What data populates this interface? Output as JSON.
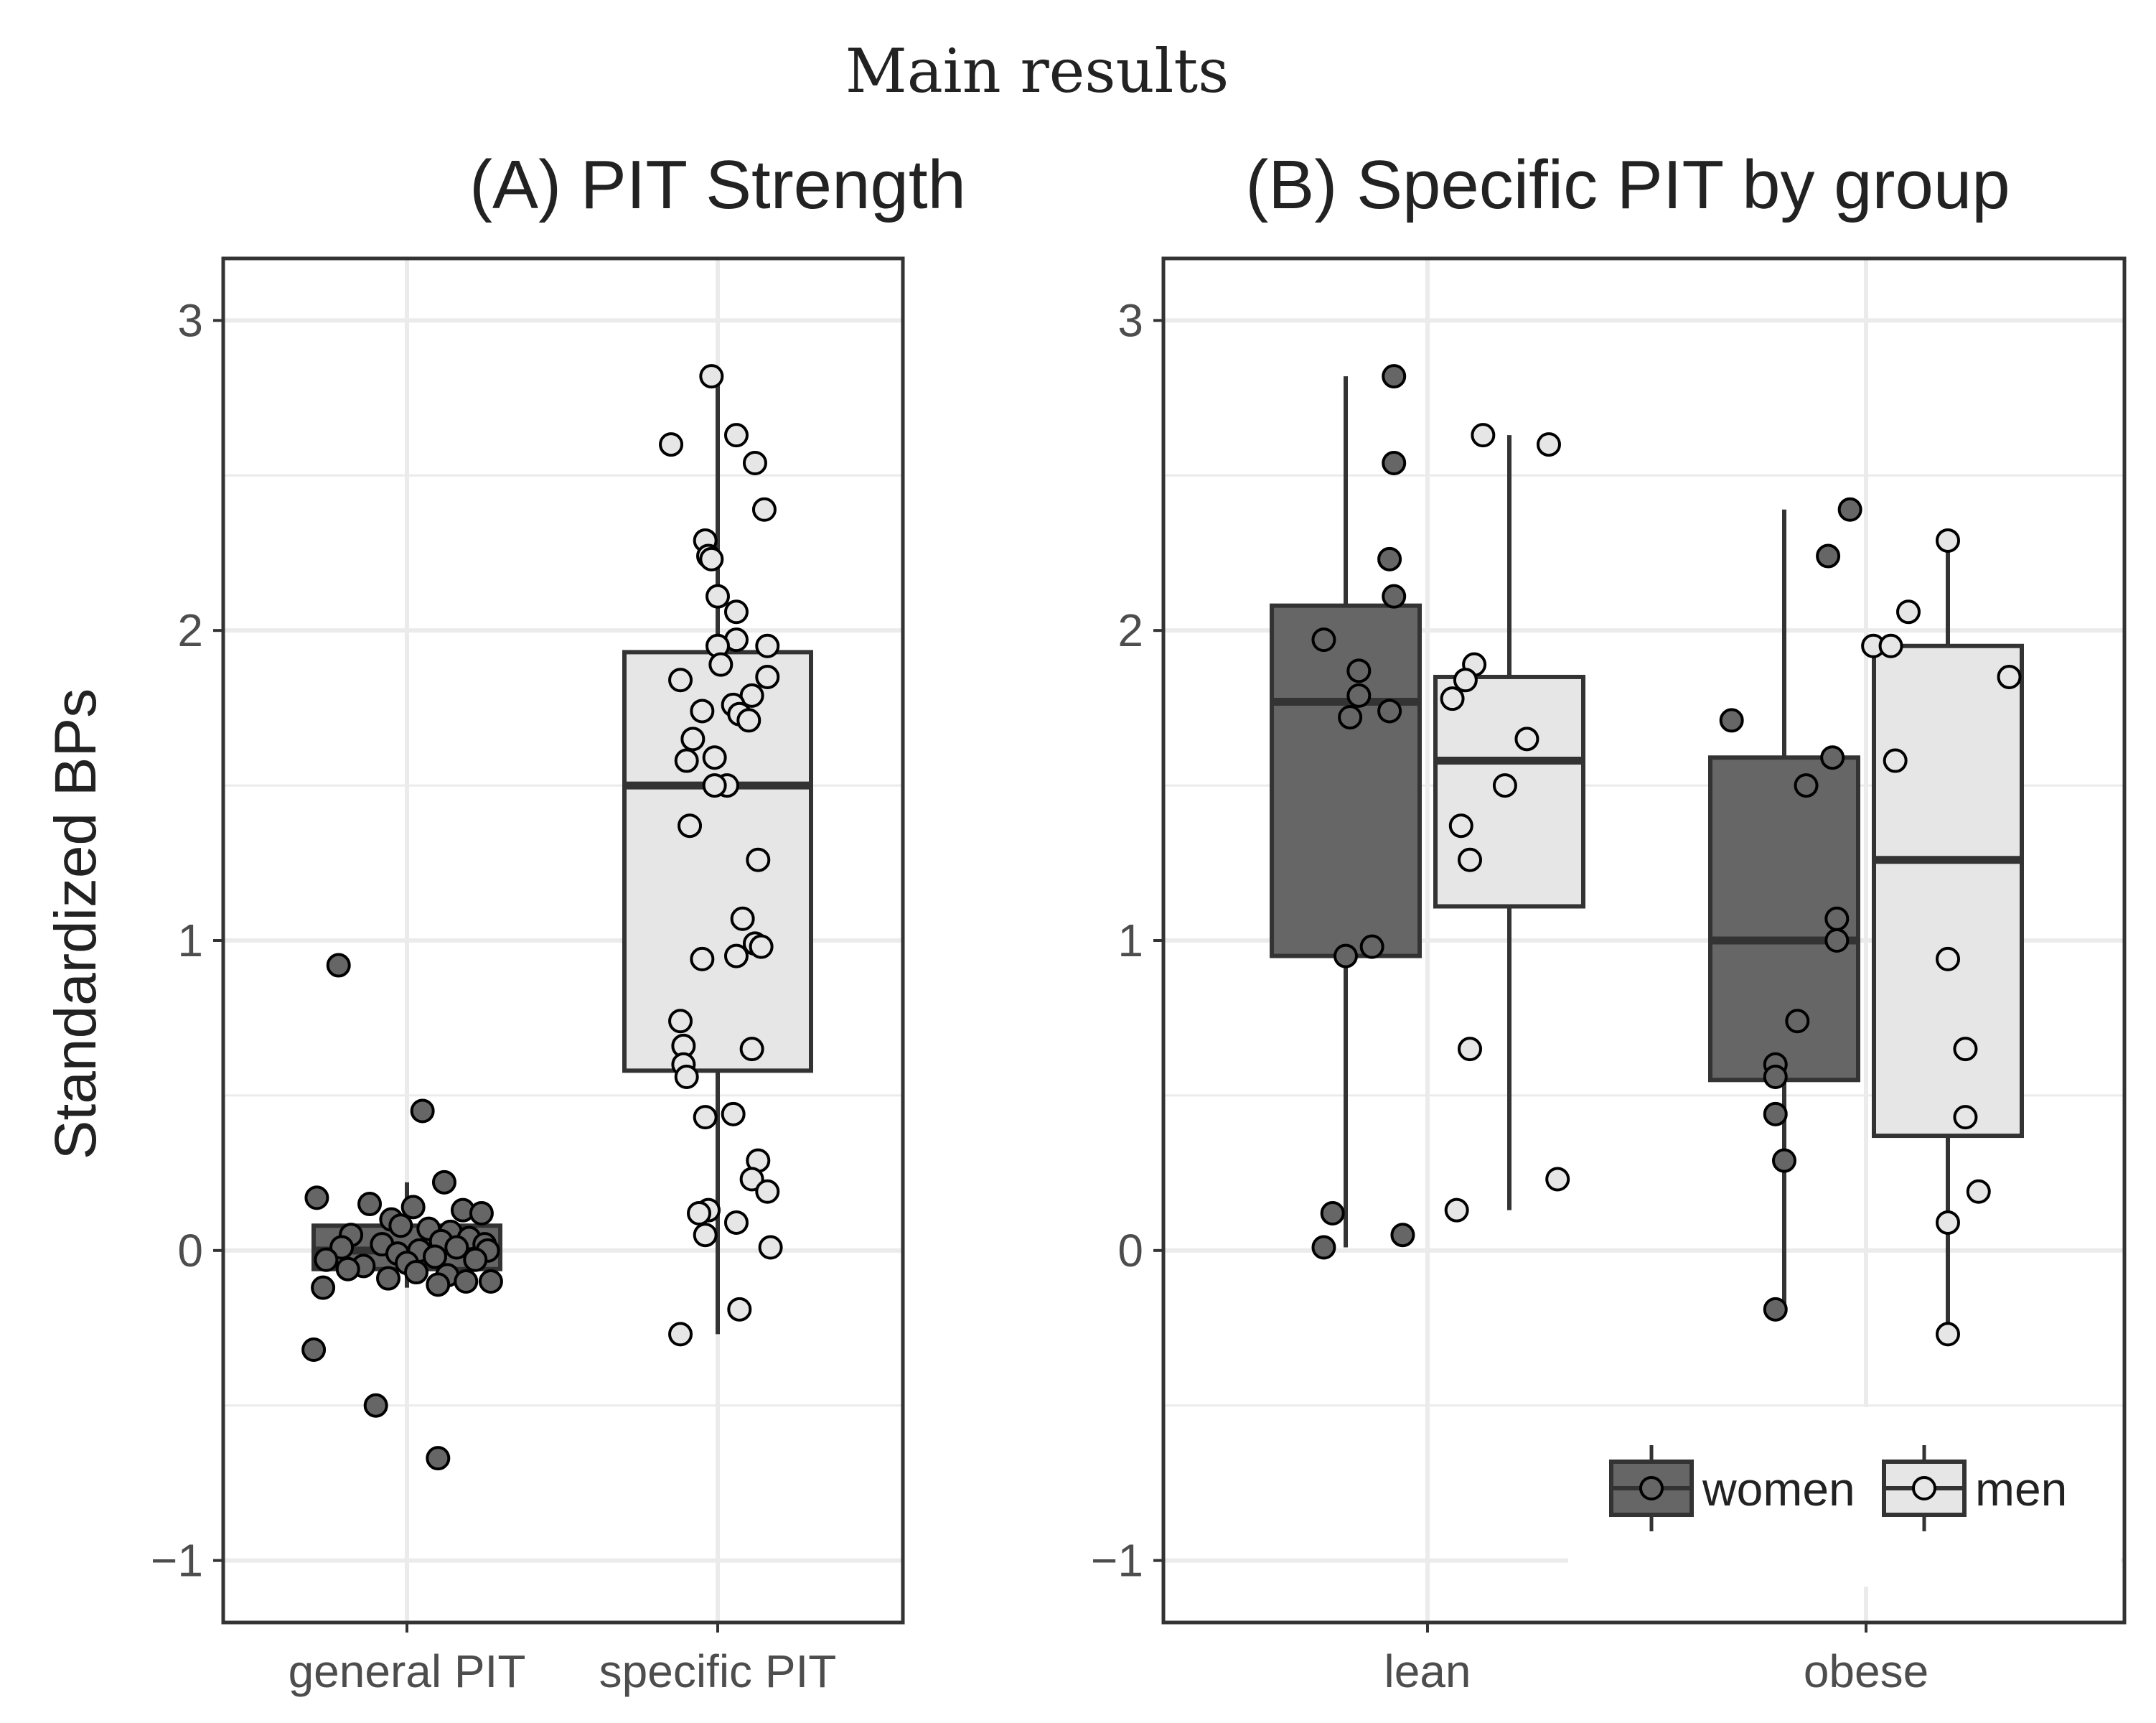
{
  "figure": {
    "title": "Main results",
    "ylabel": "Standardized BPs"
  },
  "colors": {
    "women": "#666666",
    "men": "#e6e6e6",
    "line": "#333333",
    "grid": "#ebebeb"
  },
  "chart_data": [
    {
      "type": "box",
      "title": "(A) PIT Strength",
      "ylabel": "Standardized BPs",
      "ylim": [
        -1.2,
        3.2
      ],
      "yticks": [
        -1,
        0,
        1,
        2,
        3
      ],
      "ytick_labels": [
        "−1",
        "0",
        "1",
        "2",
        "3"
      ],
      "categories": [
        "general PIT",
        "specific PIT"
      ],
      "boxes": [
        {
          "category": "general PIT",
          "fill": "women",
          "q1": -0.06,
          "median": 0.0,
          "q3": 0.08,
          "whisker_low": -0.12,
          "whisker_high": 0.22
        },
        {
          "category": "specific PIT",
          "fill": "men",
          "q1": 0.58,
          "median": 1.5,
          "q3": 1.93,
          "whisker_low": -0.27,
          "whisker_high": 2.82
        }
      ],
      "points": [
        {
          "category": "general PIT",
          "fill": "women",
          "y": [
            0.92,
            0.45,
            0.22,
            0.17,
            0.15,
            0.14,
            0.13,
            0.12,
            0.1,
            0.08,
            0.07,
            0.06,
            0.05,
            0.04,
            0.03,
            0.02,
            0.02,
            0.01,
            0.01,
            0.0,
            0.0,
            -0.01,
            -0.02,
            -0.03,
            -0.03,
            -0.04,
            -0.05,
            -0.06,
            -0.07,
            -0.08,
            -0.09,
            -0.1,
            -0.1,
            -0.11,
            -0.12,
            -0.32,
            -0.5,
            -0.67
          ],
          "jitter": [
            -0.22,
            0.05,
            0.12,
            -0.29,
            -0.12,
            0.02,
            0.18,
            0.24,
            -0.05,
            -0.02,
            0.07,
            0.14,
            -0.18,
            0.2,
            0.11,
            -0.08,
            0.25,
            -0.21,
            0.16,
            0.26,
            0.04,
            -0.03,
            0.09,
            -0.26,
            0.22,
            0.0,
            -0.14,
            -0.19,
            0.03,
            0.13,
            -0.06,
            0.19,
            0.27,
            0.1,
            -0.27,
            -0.3,
            -0.1,
            0.1
          ]
        },
        {
          "category": "specific PIT",
          "fill": "men",
          "y": [
            2.82,
            2.63,
            2.6,
            2.54,
            2.39,
            2.29,
            2.24,
            2.23,
            2.11,
            2.06,
            1.97,
            1.95,
            1.95,
            1.89,
            1.85,
            1.84,
            1.79,
            1.76,
            1.74,
            1.73,
            1.71,
            1.65,
            1.59,
            1.58,
            1.5,
            1.5,
            1.37,
            1.26,
            1.07,
            0.99,
            0.98,
            0.95,
            0.94,
            0.74,
            0.66,
            0.65,
            0.6,
            0.56,
            0.44,
            0.43,
            0.29,
            0.23,
            0.19,
            0.13,
            0.12,
            0.09,
            0.05,
            0.01,
            -0.19,
            -0.27
          ],
          "jitter": [
            -0.02,
            0.06,
            -0.15,
            0.12,
            0.15,
            -0.04,
            -0.03,
            -0.02,
            0.0,
            0.06,
            0.06,
            0.0,
            0.16,
            0.01,
            0.16,
            -0.12,
            0.11,
            0.05,
            -0.05,
            0.07,
            0.1,
            -0.08,
            -0.01,
            -0.1,
            0.03,
            -0.01,
            -0.09,
            0.13,
            0.08,
            0.12,
            0.14,
            0.06,
            -0.05,
            -0.12,
            -0.11,
            0.11,
            -0.11,
            -0.1,
            0.05,
            -0.04,
            0.13,
            0.11,
            0.16,
            -0.03,
            -0.06,
            0.06,
            -0.04,
            0.17,
            0.07,
            -0.12
          ]
        }
      ]
    },
    {
      "type": "box",
      "title": "(B) Specific PIT by group",
      "ylim": [
        -1.2,
        3.2
      ],
      "yticks": [
        -1,
        0,
        1,
        2,
        3
      ],
      "ytick_labels": [
        "−1",
        "0",
        "1",
        "2",
        "3"
      ],
      "categories": [
        "lean",
        "obese"
      ],
      "groups": [
        "women",
        "men"
      ],
      "boxes": [
        {
          "category": "lean",
          "group": "women",
          "q1": 0.95,
          "median": 1.77,
          "q3": 2.08,
          "whisker_low": 0.01,
          "whisker_high": 2.82
        },
        {
          "category": "lean",
          "group": "men",
          "q1": 1.11,
          "median": 1.58,
          "q3": 1.85,
          "whisker_low": 0.13,
          "whisker_high": 2.63
        },
        {
          "category": "obese",
          "group": "women",
          "q1": 0.55,
          "median": 1.0,
          "q3": 1.59,
          "whisker_low": -0.19,
          "whisker_high": 2.39
        },
        {
          "category": "obese",
          "group": "men",
          "q1": 0.37,
          "median": 1.26,
          "q3": 1.95,
          "whisker_low": -0.27,
          "whisker_high": 2.29
        }
      ],
      "points": [
        {
          "category": "lean",
          "group": "women",
          "y": [
            2.82,
            2.54,
            2.23,
            2.11,
            1.97,
            1.87,
            1.79,
            1.74,
            1.72,
            0.98,
            0.95,
            0.12,
            0.05,
            0.01
          ],
          "jitter": [
            0.11,
            0.11,
            0.1,
            0.11,
            -0.05,
            0.03,
            0.03,
            0.1,
            0.01,
            0.06,
            0.0,
            -0.03,
            0.13,
            -0.05
          ]
        },
        {
          "category": "lean",
          "group": "men",
          "y": [
            2.63,
            2.6,
            1.89,
            1.84,
            1.78,
            1.65,
            1.5,
            1.37,
            1.26,
            0.65,
            0.23,
            0.13
          ],
          "jitter": [
            -0.06,
            0.09,
            -0.08,
            -0.1,
            -0.13,
            0.04,
            -0.01,
            -0.11,
            -0.09,
            -0.09,
            0.11,
            -0.12
          ]
        },
        {
          "category": "obese",
          "group": "women",
          "y": [
            2.39,
            2.24,
            1.71,
            1.59,
            1.5,
            1.07,
            1.0,
            0.74,
            0.6,
            0.56,
            0.44,
            0.29,
            -0.19
          ],
          "jitter": [
            0.15,
            0.1,
            -0.12,
            0.11,
            0.05,
            0.12,
            0.12,
            0.03,
            -0.02,
            -0.02,
            -0.02,
            0.0,
            -0.02
          ]
        },
        {
          "category": "obese",
          "group": "men",
          "y": [
            2.29,
            2.06,
            1.95,
            1.95,
            1.85,
            1.58,
            0.94,
            0.65,
            0.43,
            0.19,
            0.09,
            -0.27
          ],
          "jitter": [
            0.0,
            -0.09,
            -0.17,
            -0.13,
            0.14,
            -0.12,
            0.0,
            0.04,
            0.04,
            0.07,
            0.0,
            0.0
          ]
        }
      ],
      "legend": {
        "position": "bottom-right",
        "entries": [
          "women",
          "men"
        ]
      }
    }
  ]
}
